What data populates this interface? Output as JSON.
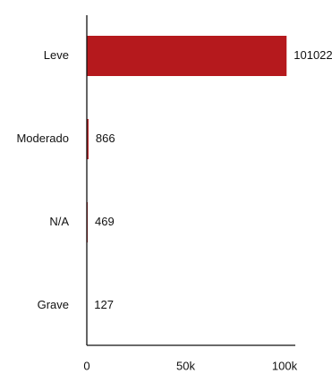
{
  "chart_data": {
    "type": "bar",
    "orientation": "horizontal",
    "categories": [
      "Leve",
      "Moderado",
      "N/A",
      "Grave"
    ],
    "values": [
      101022,
      866,
      469,
      127
    ],
    "value_labels": [
      "101022",
      "866",
      "469",
      "127"
    ],
    "xlim": [
      0,
      100000
    ],
    "x_ticks": [
      0,
      50000,
      100000
    ],
    "x_tick_labels": [
      "0",
      "50k",
      "100k"
    ],
    "title": "",
    "xlabel": "",
    "ylabel": "",
    "grid": false,
    "legend": "none",
    "colors": {
      "bar": "#b5191d",
      "axis": "#111111",
      "text": "#111111"
    }
  }
}
